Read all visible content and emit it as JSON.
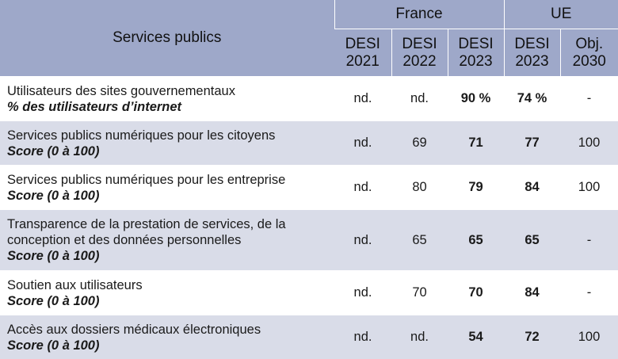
{
  "header": {
    "title": "Services publics",
    "group_france": "France",
    "group_ue": "UE",
    "cols": [
      {
        "line1": "DESI",
        "line2": "2021"
      },
      {
        "line1": "DESI",
        "line2": "2022"
      },
      {
        "line1": "DESI",
        "line2": "2023"
      },
      {
        "line1": "DESI",
        "line2": "2023"
      },
      {
        "line1": "Obj.",
        "line2": "2030"
      }
    ]
  },
  "rows": [
    {
      "label": "Utilisateurs des sites gouvernementaux",
      "unit": "% des utilisateurs d’internet",
      "values": [
        "nd.",
        "nd.",
        "90 %",
        "74 %",
        "-"
      ]
    },
    {
      "label": "Services publics numériques pour les citoyens",
      "unit": "Score (0 à 100)",
      "values": [
        "nd.",
        "69",
        "71",
        "77",
        "100"
      ]
    },
    {
      "label": "Services publics numériques pour les entreprise",
      "unit": "Score (0 à 100)",
      "values": [
        "nd.",
        "80",
        "79",
        "84",
        "100"
      ]
    },
    {
      "label": "Transparence de la prestation de services, de la conception et des données personnelles",
      "unit": "Score (0 à 100)",
      "values": [
        "nd.",
        "65",
        "65",
        "65",
        "-"
      ]
    },
    {
      "label": "Soutien aux utilisateurs",
      "unit": "Score (0 à 100)",
      "values": [
        "nd.",
        "70",
        "70",
        "84",
        "-"
      ]
    },
    {
      "label": "Accès aux dossiers médicaux électroniques",
      "unit": "Score (0 à 100)",
      "values": [
        "nd.",
        "nd.",
        "54",
        "72",
        "100"
      ]
    }
  ]
}
